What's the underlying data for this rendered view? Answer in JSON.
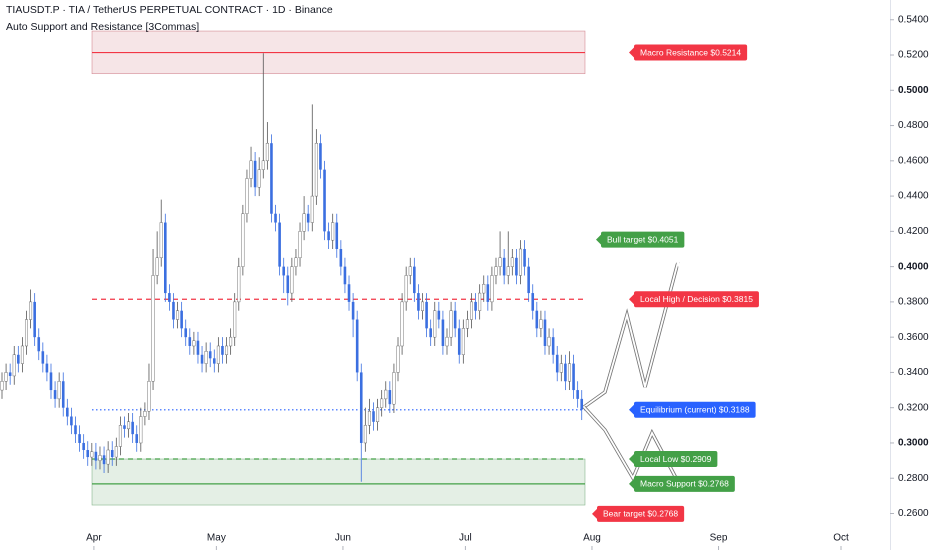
{
  "chart_data": {
    "type": "candlestick",
    "title": "TIAUSDT.P · TIA / TetherUS PERPETUAL CONTRACT · 1D · Binance",
    "subtitle": "Auto Support and Resistance [3Commas]",
    "up_color": "#ffffff",
    "down_color": "#3b6fe0",
    "xlim": [
      0,
      218
    ],
    "xticks": [
      {
        "value": 23,
        "label": "Apr"
      },
      {
        "value": 53,
        "label": "May"
      },
      {
        "value": 84,
        "label": "Jun"
      },
      {
        "value": 114,
        "label": "Jul"
      },
      {
        "value": 145,
        "label": "Aug"
      },
      {
        "value": 176,
        "label": "Sep"
      },
      {
        "value": 206,
        "label": "Oct"
      }
    ],
    "ylim": [
      0.2393,
      0.5512
    ],
    "yticks": [
      {
        "value": 0.54,
        "label": "0.5400"
      },
      {
        "value": 0.52,
        "label": "0.5200"
      },
      {
        "value": 0.5,
        "label": "0.5000"
      },
      {
        "value": 0.48,
        "label": "0.4800"
      },
      {
        "value": 0.46,
        "label": "0.4600"
      },
      {
        "value": 0.44,
        "label": "0.4400"
      },
      {
        "value": 0.42,
        "label": "0.4200"
      },
      {
        "value": 0.4,
        "label": "0.4000"
      },
      {
        "value": 0.38,
        "label": "0.3800"
      },
      {
        "value": 0.36,
        "label": "0.3600"
      },
      {
        "value": 0.34,
        "label": "0.3400"
      },
      {
        "value": 0.32,
        "label": "0.3200"
      },
      {
        "value": 0.3,
        "label": "0.3000"
      },
      {
        "value": 0.28,
        "label": "0.2800"
      },
      {
        "value": 0.26,
        "label": "0.2600"
      }
    ],
    "open": [
      0.33,
      0.335,
      0.34,
      0.338,
      0.35,
      0.345,
      0.355,
      0.37,
      0.38,
      0.36,
      0.352,
      0.345,
      0.34,
      0.33,
      0.325,
      0.335,
      0.32,
      0.315,
      0.31,
      0.305,
      0.3,
      0.296,
      0.292,
      0.295,
      0.29,
      0.293,
      0.288,
      0.296,
      0.292,
      0.298,
      0.31,
      0.308,
      0.312,
      0.305,
      0.3,
      0.315,
      0.318,
      0.335,
      0.395,
      0.405,
      0.425,
      0.385,
      0.38,
      0.37,
      0.375,
      0.365,
      0.36,
      0.355,
      0.358,
      0.35,
      0.345,
      0.352,
      0.348,
      0.345,
      0.355,
      0.35,
      0.355,
      0.36,
      0.38,
      0.4,
      0.43,
      0.45,
      0.46,
      0.445,
      0.455,
      0.46,
      0.47,
      0.43,
      0.425,
      0.4,
      0.395,
      0.385,
      0.4,
      0.405,
      0.42,
      0.43,
      0.425,
      0.44,
      0.47,
      0.455,
      0.42,
      0.415,
      0.425,
      0.41,
      0.4,
      0.39,
      0.38,
      0.37,
      0.34,
      0.3,
      0.31,
      0.318,
      0.312,
      0.32,
      0.325,
      0.33,
      0.322,
      0.34,
      0.355,
      0.38,
      0.395,
      0.4,
      0.385,
      0.375,
      0.38,
      0.365,
      0.36,
      0.375,
      0.37,
      0.355,
      0.36,
      0.375,
      0.365,
      0.35,
      0.365,
      0.37,
      0.38,
      0.375,
      0.385,
      0.39,
      0.38,
      0.395,
      0.4,
      0.405,
      0.395,
      0.4,
      0.405,
      0.395,
      0.41,
      0.4,
      0.385,
      0.375,
      0.365,
      0.37,
      0.355,
      0.36,
      0.35,
      0.34,
      0.345,
      0.335,
      0.345,
      0.33,
      0.325
    ],
    "high": [
      0.34,
      0.345,
      0.345,
      0.355,
      0.355,
      0.36,
      0.375,
      0.387,
      0.385,
      0.365,
      0.357,
      0.35,
      0.345,
      0.335,
      0.34,
      0.34,
      0.325,
      0.32,
      0.315,
      0.31,
      0.305,
      0.301,
      0.3,
      0.3,
      0.298,
      0.298,
      0.301,
      0.301,
      0.303,
      0.315,
      0.315,
      0.317,
      0.317,
      0.31,
      0.32,
      0.323,
      0.345,
      0.41,
      0.42,
      0.438,
      0.43,
      0.39,
      0.385,
      0.38,
      0.38,
      0.37,
      0.365,
      0.363,
      0.363,
      0.355,
      0.357,
      0.357,
      0.353,
      0.36,
      0.36,
      0.36,
      0.365,
      0.385,
      0.405,
      0.435,
      0.455,
      0.468,
      0.465,
      0.462,
      0.521,
      0.482,
      0.475,
      0.435,
      0.43,
      0.405,
      0.4,
      0.405,
      0.41,
      0.425,
      0.44,
      0.435,
      0.492,
      0.478,
      0.475,
      0.46,
      0.425,
      0.43,
      0.43,
      0.415,
      0.405,
      0.395,
      0.385,
      0.375,
      0.345,
      0.32,
      0.325,
      0.323,
      0.325,
      0.33,
      0.335,
      0.335,
      0.345,
      0.36,
      0.385,
      0.4,
      0.405,
      0.405,
      0.39,
      0.385,
      0.385,
      0.37,
      0.38,
      0.38,
      0.375,
      0.365,
      0.38,
      0.38,
      0.37,
      0.37,
      0.375,
      0.385,
      0.385,
      0.39,
      0.395,
      0.395,
      0.4,
      0.405,
      0.42,
      0.41,
      0.42,
      0.41,
      0.41,
      0.415,
      0.415,
      0.405,
      0.39,
      0.38,
      0.375,
      0.375,
      0.365,
      0.365,
      0.355,
      0.35,
      0.35,
      0.352,
      0.35,
      0.335,
      0.33
    ],
    "low": [
      0.325,
      0.33,
      0.333,
      0.333,
      0.34,
      0.34,
      0.35,
      0.365,
      0.355,
      0.347,
      0.34,
      0.335,
      0.325,
      0.32,
      0.32,
      0.315,
      0.31,
      0.305,
      0.3,
      0.295,
      0.291,
      0.287,
      0.287,
      0.285,
      0.285,
      0.283,
      0.283,
      0.287,
      0.287,
      0.293,
      0.303,
      0.303,
      0.3,
      0.295,
      0.295,
      0.31,
      0.313,
      0.33,
      0.39,
      0.4,
      0.38,
      0.375,
      0.365,
      0.365,
      0.36,
      0.355,
      0.35,
      0.35,
      0.345,
      0.34,
      0.34,
      0.343,
      0.34,
      0.34,
      0.345,
      0.345,
      0.35,
      0.355,
      0.375,
      0.395,
      0.425,
      0.445,
      0.44,
      0.44,
      0.45,
      0.455,
      0.425,
      0.42,
      0.395,
      0.385,
      0.378,
      0.38,
      0.395,
      0.4,
      0.415,
      0.42,
      0.42,
      0.435,
      0.45,
      0.415,
      0.41,
      0.41,
      0.405,
      0.395,
      0.385,
      0.375,
      0.36,
      0.335,
      0.278,
      0.295,
      0.305,
      0.307,
      0.307,
      0.315,
      0.32,
      0.317,
      0.317,
      0.335,
      0.35,
      0.375,
      0.39,
      0.38,
      0.37,
      0.37,
      0.36,
      0.355,
      0.355,
      0.365,
      0.35,
      0.35,
      0.355,
      0.36,
      0.345,
      0.345,
      0.36,
      0.365,
      0.37,
      0.37,
      0.38,
      0.375,
      0.375,
      0.39,
      0.395,
      0.39,
      0.39,
      0.395,
      0.39,
      0.39,
      0.395,
      0.38,
      0.37,
      0.36,
      0.36,
      0.35,
      0.35,
      0.345,
      0.335,
      0.335,
      0.33,
      0.33,
      0.325,
      0.32,
      0.313
    ],
    "close": [
      0.335,
      0.34,
      0.338,
      0.35,
      0.345,
      0.355,
      0.37,
      0.38,
      0.36,
      0.352,
      0.345,
      0.34,
      0.33,
      0.325,
      0.335,
      0.32,
      0.315,
      0.31,
      0.305,
      0.3,
      0.296,
      0.292,
      0.295,
      0.29,
      0.293,
      0.288,
      0.296,
      0.292,
      0.298,
      0.31,
      0.308,
      0.312,
      0.305,
      0.3,
      0.315,
      0.318,
      0.335,
      0.395,
      0.405,
      0.425,
      0.385,
      0.38,
      0.37,
      0.375,
      0.365,
      0.36,
      0.355,
      0.358,
      0.35,
      0.345,
      0.352,
      0.348,
      0.345,
      0.355,
      0.35,
      0.355,
      0.36,
      0.38,
      0.4,
      0.43,
      0.45,
      0.46,
      0.445,
      0.455,
      0.46,
      0.47,
      0.43,
      0.425,
      0.4,
      0.395,
      0.385,
      0.4,
      0.405,
      0.42,
      0.43,
      0.425,
      0.44,
      0.47,
      0.455,
      0.42,
      0.415,
      0.425,
      0.41,
      0.4,
      0.39,
      0.38,
      0.37,
      0.34,
      0.3,
      0.31,
      0.318,
      0.312,
      0.32,
      0.325,
      0.33,
      0.322,
      0.34,
      0.355,
      0.38,
      0.395,
      0.4,
      0.385,
      0.375,
      0.38,
      0.365,
      0.36,
      0.375,
      0.37,
      0.355,
      0.36,
      0.375,
      0.365,
      0.35,
      0.365,
      0.37,
      0.38,
      0.375,
      0.385,
      0.39,
      0.38,
      0.395,
      0.4,
      0.405,
      0.395,
      0.4,
      0.405,
      0.395,
      0.41,
      0.4,
      0.385,
      0.375,
      0.365,
      0.37,
      0.355,
      0.36,
      0.35,
      0.34,
      0.345,
      0.335,
      0.345,
      0.33,
      0.325,
      0.319
    ],
    "zones": [
      {
        "from": 0.5094,
        "to": 0.5336,
        "color": "#b2283a"
      },
      {
        "from": 0.2648,
        "to": 0.2909,
        "color": "#1e7a2c"
      }
    ],
    "levels": [
      {
        "label": "Macro Resistance $0.5214",
        "value": 0.5214,
        "color": "#f23645",
        "line": "solid"
      },
      {
        "label": "Bull target $0.4051",
        "value": 0.4051,
        "color": "#43a047"
      },
      {
        "label": "Local High / Decision $0.3815",
        "value": 0.3815,
        "color": "#f23645",
        "line": "dashed"
      },
      {
        "label": "Equilibrium (current) $0.3188",
        "value": 0.3188,
        "color": "#2962ff",
        "line": "dotted"
      },
      {
        "label": "Local Low $0.2909",
        "value": 0.2909,
        "color": "#43a047",
        "line": "dashed"
      },
      {
        "label": "Macro Support $0.2768",
        "value": 0.2768,
        "color": "#43a047",
        "line": "solid"
      },
      {
        "label": "Bear target $0.2768",
        "value": 0.2768,
        "color": "#f23645"
      }
    ]
  }
}
